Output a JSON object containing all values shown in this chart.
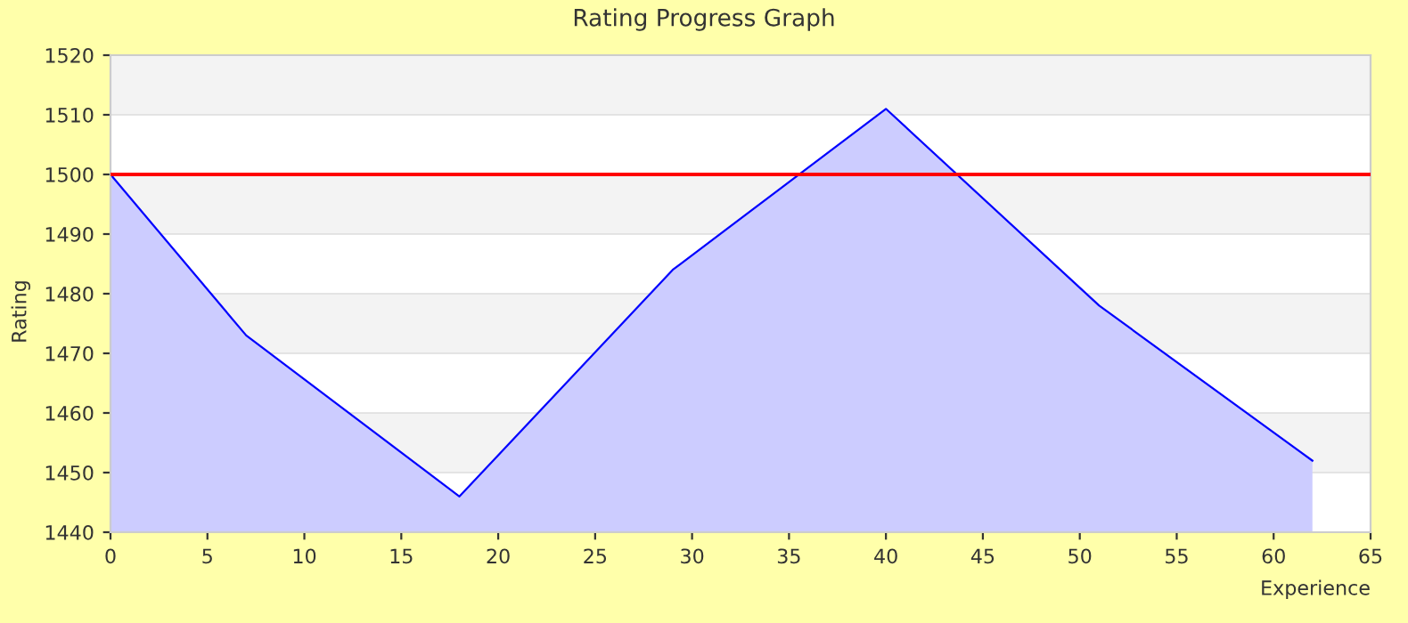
{
  "chart_data": {
    "type": "area",
    "title": "Rating Progress Graph",
    "xlabel": "Experience",
    "ylabel": "Rating",
    "x": [
      0,
      7,
      18,
      29,
      40,
      51,
      62
    ],
    "series": [
      {
        "color": "#0000ff",
        "values": [
          1500,
          1473,
          1446,
          1484,
          1511,
          1478,
          1452
        ]
      }
    ],
    "xlim": [
      0,
      65
    ],
    "xticks": [
      0,
      5,
      10,
      15,
      20,
      25,
      30,
      35,
      40,
      45,
      50,
      55,
      60,
      65
    ],
    "ylim": [
      1440,
      1520
    ],
    "yticks": [
      1440,
      1450,
      1460,
      1470,
      1480,
      1490,
      1500,
      1510,
      1520
    ],
    "grid": "y",
    "legend": false,
    "ref_lines": [
      {
        "axis": "y",
        "value": 1500,
        "color": "#ff0000"
      }
    ]
  }
}
